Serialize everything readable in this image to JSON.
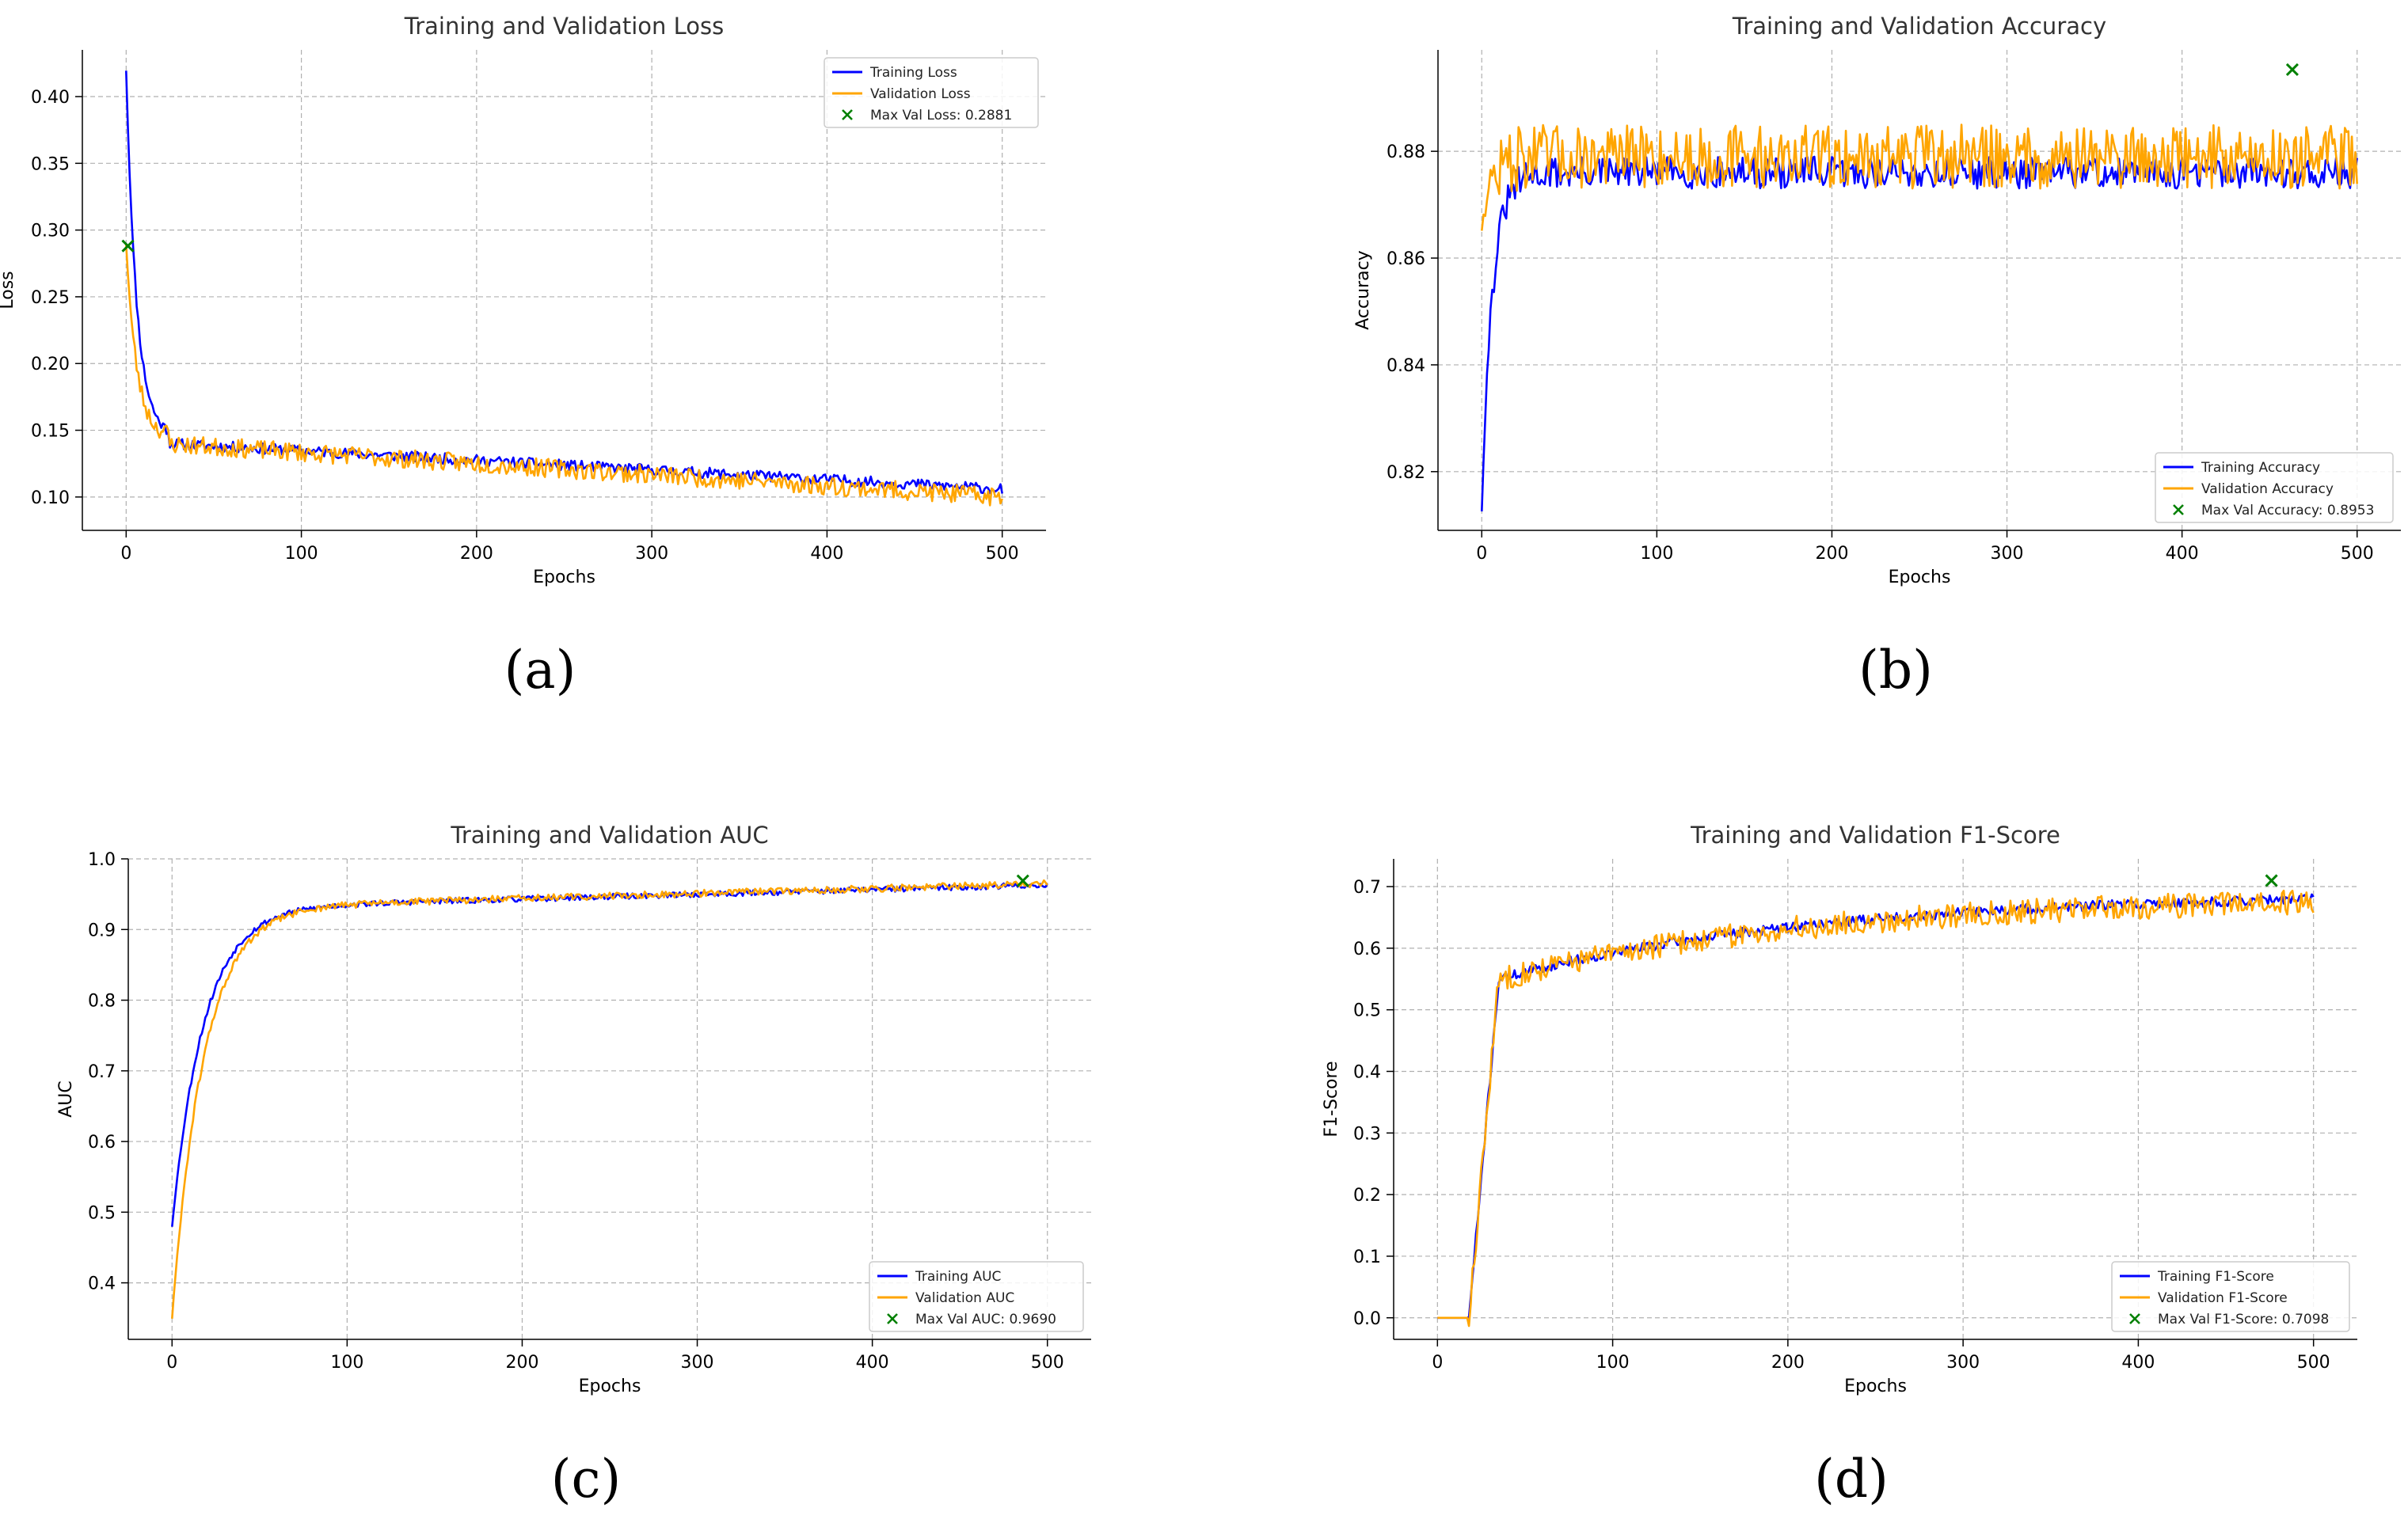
{
  "colors": {
    "train": "#0000ff",
    "val": "#ffa500",
    "marker": "#008000",
    "grid": "#b0b0b0",
    "axis": "#000000"
  },
  "chart_data": [
    {
      "type": "line",
      "panel": "(a)",
      "title": "Training and Validation Loss",
      "xlabel": "Epochs",
      "ylabel": "Loss",
      "xlim": [
        -25,
        525
      ],
      "ylim": [
        0.075,
        0.435
      ],
      "xticks": [
        0,
        100,
        200,
        300,
        400,
        500
      ],
      "yticks": [
        0.1,
        0.15,
        0.2,
        0.25,
        0.3,
        0.35,
        0.4
      ],
      "yfmt": 2,
      "grid": true,
      "legend_position": "top-right",
      "series": [
        {
          "name": "Training Loss",
          "color": "#0000ff",
          "shape": "loss",
          "start": 0.42,
          "end": 0.106,
          "noise": 0.004,
          "seed": 11
        },
        {
          "name": "Validation Loss",
          "color": "#ffa500",
          "shape": "loss",
          "start": 0.29,
          "end": 0.1,
          "noise": 0.007,
          "seed": 23
        }
      ],
      "marker": {
        "label": "Max Val Loss: 0.2881",
        "x": 1,
        "y": 0.2881,
        "color": "#008000"
      }
    },
    {
      "type": "line",
      "panel": "(b)",
      "title": "Training and Validation Accuracy",
      "xlabel": "Epochs",
      "ylabel": "Accuracy",
      "xlim": [
        -25,
        525
      ],
      "ylim": [
        0.809,
        0.899
      ],
      "xticks": [
        0,
        100,
        200,
        300,
        400,
        500
      ],
      "yticks": [
        0.82,
        0.84,
        0.86,
        0.88
      ],
      "yfmt": 2,
      "grid": true,
      "legend_position": "bottom-right",
      "series": [
        {
          "name": "Training Accuracy",
          "color": "#0000ff",
          "shape": "acc",
          "start": 0.813,
          "end": 0.876,
          "noise": 0.003,
          "seed": 31
        },
        {
          "name": "Validation Accuracy",
          "color": "#ffa500",
          "shape": "acc",
          "start": 0.866,
          "end": 0.879,
          "noise": 0.006,
          "seed": 47
        }
      ],
      "marker": {
        "label": "Max Val Accuracy: 0.8953",
        "x": 463,
        "y": 0.8953,
        "color": "#008000"
      }
    },
    {
      "type": "line",
      "panel": "(c)",
      "title": "Training and Validation AUC",
      "xlabel": "Epochs",
      "ylabel": "AUC",
      "xlim": [
        -25,
        525
      ],
      "ylim": [
        0.32,
        1.0
      ],
      "xticks": [
        0,
        100,
        200,
        300,
        400,
        500
      ],
      "yticks": [
        0.4,
        0.5,
        0.6,
        0.7,
        0.8,
        0.9,
        1.0
      ],
      "yfmt": 1,
      "grid": true,
      "legend_position": "bottom-right",
      "series": [
        {
          "name": "Training AUC",
          "color": "#0000ff",
          "shape": "auc",
          "start": 0.48,
          "end": 0.963,
          "noise": 0.004,
          "seed": 53
        },
        {
          "name": "Validation AUC",
          "color": "#ffa500",
          "shape": "auc",
          "start": 0.35,
          "end": 0.965,
          "noise": 0.005,
          "seed": 61
        }
      ],
      "marker": {
        "label": "Max Val AUC: 0.9690",
        "x": 486,
        "y": 0.969,
        "color": "#008000"
      }
    },
    {
      "type": "line",
      "panel": "(d)",
      "title": "Training and Validation F1-Score",
      "xlabel": "Epochs",
      "ylabel": "F1-Score",
      "xlim": [
        -25,
        525
      ],
      "ylim": [
        -0.035,
        0.745
      ],
      "xticks": [
        0,
        100,
        200,
        300,
        400,
        500
      ],
      "yticks": [
        0.0,
        0.1,
        0.2,
        0.3,
        0.4,
        0.5,
        0.6,
        0.7
      ],
      "yfmt": 1,
      "grid": true,
      "legend_position": "bottom-right",
      "series": [
        {
          "name": "Training F1-Score",
          "color": "#0000ff",
          "shape": "f1",
          "start": 0.0,
          "end": 0.69,
          "noise": 0.008,
          "seed": 71
        },
        {
          "name": "Validation F1-Score",
          "color": "#ffa500",
          "shape": "f1",
          "start": 0.0,
          "end": 0.685,
          "noise": 0.02,
          "seed": 83
        }
      ],
      "marker": {
        "label": "Max Val F1-Score: 0.7098",
        "x": 476,
        "y": 0.7098,
        "color": "#008000"
      }
    }
  ]
}
